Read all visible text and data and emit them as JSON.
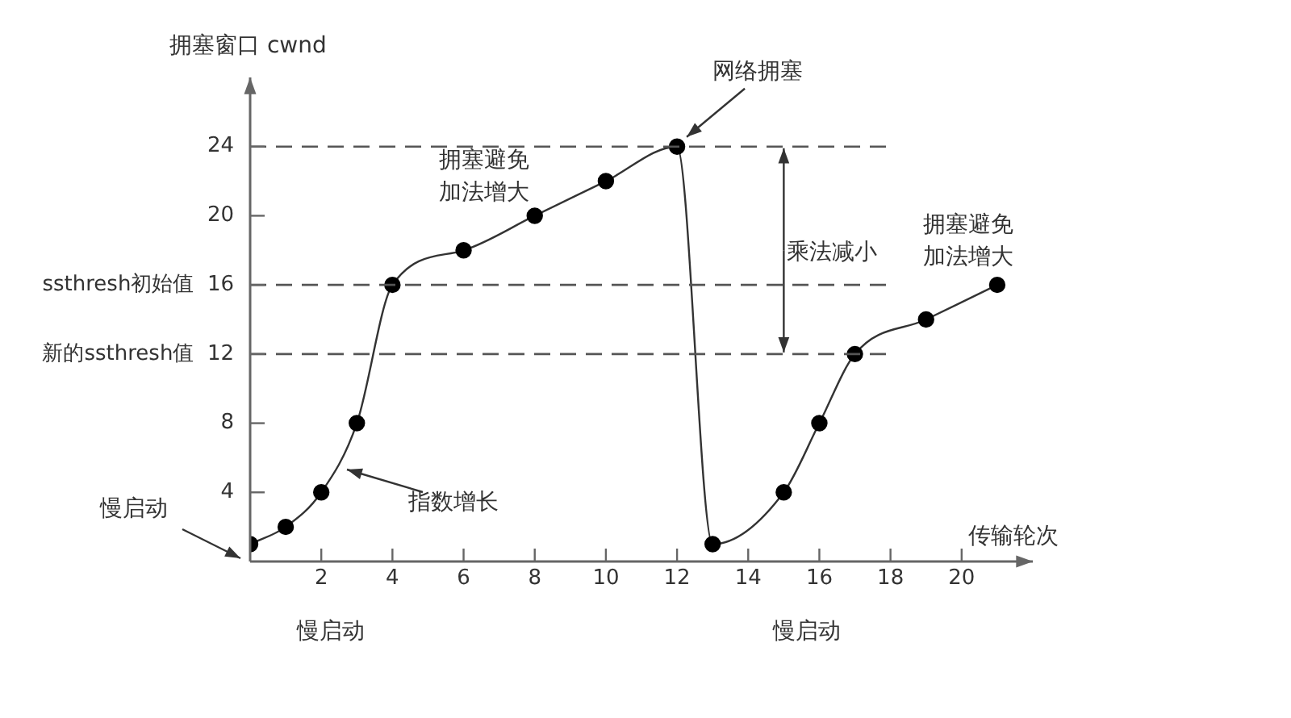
{
  "chart_data": {
    "type": "line",
    "xlabel": "传输轮次",
    "ylabel": "拥塞窗口 cwnd",
    "x": [
      0,
      1,
      2,
      3,
      4,
      6,
      8,
      10,
      12,
      13,
      15,
      16,
      17,
      19,
      21
    ],
    "series": [
      {
        "color": "#000000",
        "values": [
          1,
          2,
          4,
          8,
          16,
          18,
          20,
          22,
          24,
          1,
          4,
          8,
          12,
          14,
          16
        ]
      }
    ],
    "xlim": [
      0,
      22
    ],
    "xticks": [
      2,
      4,
      6,
      8,
      10,
      12,
      14,
      16,
      18,
      20
    ],
    "ylim": [
      0,
      28
    ],
    "yticks": [
      4,
      8,
      {
        "value": 12,
        "label": "新的ssthresh值  12"
      },
      {
        "value": 16,
        "label": "ssthresh初始值  16"
      },
      20,
      24
    ],
    "ref_lines": [
      {
        "axis": "y",
        "value": 24,
        "color": "#555555",
        "line_style": "dashed"
      },
      {
        "axis": "y",
        "value": 16,
        "color": "#555555",
        "line_style": "dashed"
      },
      {
        "axis": "y",
        "value": 12,
        "color": "#555555",
        "line_style": "dashed"
      }
    ],
    "annotations": [
      {
        "text": "网络拥塞",
        "x": 12,
        "y": 24
      },
      "拥塞避免加法增大",
      {
        "text": "乘法减小",
        "x": 15,
        "y": 24
      },
      "拥塞避免加法增大",
      "指数增长",
      "慢启动",
      "慢启动",
      "慢启动"
    ],
    "grid": false,
    "legend": false,
    "marker": "circle",
    "line_style": "solid"
  }
}
